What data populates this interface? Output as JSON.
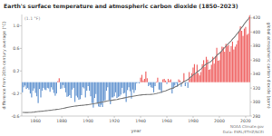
{
  "chart_data": {
    "type": "bar",
    "title": "Earth's surface temperature and atmospheric carbon dioxide (1850–2023)",
    "x_label": "year",
    "y_label": "difference from 20th century average (°C)",
    "y2_label": "global atmospheric carbon dioxide (ppm)",
    "annotation": "(1.1 °F)",
    "credit": "NOAA Climate.gov",
    "source": "Data: ESRL/ETHZ/NCEI",
    "grid": false,
    "x": [
      1850,
      1851,
      1852,
      1853,
      1854,
      1855,
      1856,
      1857,
      1858,
      1859,
      1860,
      1861,
      1862,
      1863,
      1864,
      1865,
      1866,
      1867,
      1868,
      1869,
      1870,
      1871,
      1872,
      1873,
      1874,
      1875,
      1876,
      1877,
      1878,
      1879,
      1880,
      1881,
      1882,
      1883,
      1884,
      1885,
      1886,
      1887,
      1888,
      1889,
      1890,
      1891,
      1892,
      1893,
      1894,
      1895,
      1896,
      1897,
      1898,
      1899,
      1900,
      1901,
      1902,
      1903,
      1904,
      1905,
      1906,
      1907,
      1908,
      1909,
      1910,
      1911,
      1912,
      1913,
      1914,
      1915,
      1916,
      1917,
      1918,
      1919,
      1920,
      1921,
      1922,
      1923,
      1924,
      1925,
      1926,
      1927,
      1928,
      1929,
      1930,
      1931,
      1932,
      1933,
      1934,
      1935,
      1936,
      1937,
      1938,
      1939,
      1940,
      1941,
      1942,
      1943,
      1944,
      1945,
      1946,
      1947,
      1948,
      1949,
      1950,
      1951,
      1952,
      1953,
      1954,
      1955,
      1956,
      1957,
      1958,
      1959,
      1960,
      1961,
      1962,
      1963,
      1964,
      1965,
      1966,
      1967,
      1968,
      1969,
      1970,
      1971,
      1972,
      1973,
      1974,
      1975,
      1976,
      1977,
      1978,
      1979,
      1980,
      1981,
      1982,
      1983,
      1984,
      1985,
      1986,
      1987,
      1988,
      1989,
      1990,
      1991,
      1992,
      1993,
      1994,
      1995,
      1996,
      1997,
      1998,
      1999,
      2000,
      2001,
      2002,
      2003,
      2004,
      2005,
      2006,
      2007,
      2008,
      2009,
      2010,
      2011,
      2012,
      2013,
      2014,
      2015,
      2016,
      2017,
      2018,
      2019,
      2020,
      2021,
      2022,
      2023
    ],
    "xlim": [
      1849.5,
      2023.5
    ],
    "xticks": [
      1860,
      1880,
      1900,
      1920,
      1940,
      1960,
      1980,
      2000,
      2020
    ],
    "ylim": [
      -0.6,
      1.2
    ],
    "yticks": [
      -0.6,
      -0.2,
      0.2,
      0.6,
      {
        "value": 1,
        "label": "1.0"
      }
    ],
    "y2lim": [
      280,
      425
    ],
    "y2ticks": [
      280,
      300,
      320,
      340,
      360,
      380,
      400,
      420
    ],
    "series": [
      {
        "type": "bar",
        "colors": [
          "#6a99d2",
          "#6a99d2",
          "#6a99d2",
          "#6a99d2",
          "#6a99d2",
          "#6a99d2",
          "#6a99d2",
          "#6a99d2",
          "#6a99d2",
          "#6a99d2",
          "#6a99d2",
          "#6a99d2",
          "#6a99d2",
          "#6a99d2",
          "#6a99d2",
          "#6a99d2",
          "#6a99d2",
          "#6a99d2",
          "#6a99d2",
          "#6a99d2",
          "#6a99d2",
          "#6a99d2",
          "#6a99d2",
          "#6a99d2",
          "#6a99d2",
          "#6a99d2",
          "#6a99d2",
          "#f06b6b",
          "#f06b6b",
          "#6a99d2",
          "#6a99d2",
          "#6a99d2",
          "#6a99d2",
          "#6a99d2",
          "#6a99d2",
          "#6a99d2",
          "#6a99d2",
          "#6a99d2",
          "#6a99d2",
          "#6a99d2",
          "#6a99d2",
          "#6a99d2",
          "#6a99d2",
          "#6a99d2",
          "#6a99d2",
          "#6a99d2",
          "#6a99d2",
          "#6a99d2",
          "#6a99d2",
          "#6a99d2",
          "#6a99d2",
          "#6a99d2",
          "#6a99d2",
          "#6a99d2",
          "#6a99d2",
          "#6a99d2",
          "#6a99d2",
          "#6a99d2",
          "#6a99d2",
          "#6a99d2",
          "#6a99d2",
          "#6a99d2",
          "#6a99d2",
          "#6a99d2",
          "#6a99d2",
          "#6a99d2",
          "#6a99d2",
          "#6a99d2",
          "#6a99d2",
          "#6a99d2",
          "#6a99d2",
          "#6a99d2",
          "#6a99d2",
          "#6a99d2",
          "#6a99d2",
          "#6a99d2",
          "#6a99d2",
          "#6a99d2",
          "#6a99d2",
          "#6a99d2",
          "#6a99d2",
          "#6a99d2",
          "#6a99d2",
          "#6a99d2",
          "#6a99d2",
          "#6a99d2",
          "#6a99d2",
          "#6a99d2",
          "#6a99d2",
          "#6a99d2",
          "#f06b6b",
          "#f06b6b",
          "#f06b6b",
          "#f06b6b",
          "#f06b6b",
          "#f06b6b",
          "#6a99d2",
          "#6a99d2",
          "#6a99d2",
          "#6a99d2",
          "#6a99d2",
          "#6a99d2",
          "#f06b6b",
          "#f06b6b",
          "#6a99d2",
          "#6a99d2",
          "#6a99d2",
          "#f06b6b",
          "#f06b6b",
          "#f06b6b",
          "#6a99d2",
          "#f06b6b",
          "#f06b6b",
          "#f06b6b",
          "#6a99d2",
          "#6a99d2",
          "#6a99d2",
          "#6a99d2",
          "#6a99d2",
          "#f06b6b",
          "#f06b6b",
          "#6a99d2",
          "#f06b6b",
          "#f06b6b",
          "#6a99d2",
          "#6a99d2",
          "#6a99d2",
          "#f06b6b",
          "#f06b6b",
          "#f06b6b",
          "#f06b6b",
          "#f06b6b",
          "#f06b6b",
          "#f06b6b",
          "#f06b6b",
          "#f06b6b",
          "#f06b6b",
          "#f06b6b",
          "#f06b6b",
          "#f06b6b",
          "#f06b6b",
          "#f06b6b",
          "#f06b6b",
          "#f06b6b",
          "#f06b6b",
          "#f06b6b",
          "#f06b6b",
          "#f06b6b",
          "#f06b6b",
          "#f06b6b",
          "#f06b6b",
          "#f06b6b",
          "#f06b6b",
          "#f06b6b",
          "#f06b6b",
          "#f06b6b",
          "#f06b6b",
          "#f06b6b",
          "#f06b6b",
          "#f06b6b",
          "#f06b6b",
          "#f06b6b",
          "#f06b6b",
          "#f06b6b",
          "#f06b6b",
          "#f06b6b",
          "#f06b6b",
          "#f06b6b",
          "#f06b6b",
          "#f06b6b",
          "#f06b6b",
          "#f06b6b",
          "#f06b6b",
          "#f06b6b"
        ],
        "values": [
          -0.18,
          -0.09,
          -0.06,
          -0.12,
          -0.1,
          -0.13,
          -0.2,
          -0.27,
          -0.15,
          -0.11,
          -0.19,
          -0.25,
          -0.37,
          -0.12,
          -0.27,
          -0.15,
          -0.1,
          -0.13,
          -0.14,
          -0.1,
          -0.11,
          -0.17,
          -0.09,
          -0.13,
          -0.19,
          -0.24,
          -0.2,
          0.02,
          0.07,
          -0.12,
          -0.11,
          -0.05,
          -0.1,
          -0.18,
          -0.26,
          -0.25,
          -0.23,
          -0.28,
          -0.13,
          -0.1,
          -0.35,
          -0.24,
          -0.27,
          -0.31,
          -0.3,
          -0.23,
          -0.09,
          -0.11,
          -0.27,
          -0.15,
          -0.07,
          -0.15,
          -0.25,
          -0.37,
          -0.45,
          -0.28,
          -0.21,
          -0.38,
          -0.43,
          -0.44,
          -0.4,
          -0.44,
          -0.33,
          -0.32,
          -0.15,
          -0.09,
          -0.32,
          -0.39,
          -0.27,
          -0.27,
          -0.25,
          -0.18,
          -0.28,
          -0.26,
          -0.25,
          -0.22,
          -0.1,
          -0.2,
          -0.19,
          -0.35,
          -0.14,
          -0.09,
          -0.16,
          -0.29,
          -0.13,
          -0.19,
          -0.14,
          -0.02,
          -0.01,
          -0.02,
          0.08,
          0.13,
          0.03,
          0.06,
          0.19,
          0.07,
          -0.07,
          -0.05,
          -0.09,
          -0.1,
          -0.18,
          -0.07,
          0.01,
          0.08,
          -0.13,
          -0.14,
          -0.19,
          0.05,
          0.06,
          0.03,
          -0.03,
          0.06,
          0.03,
          0.05,
          -0.2,
          -0.11,
          -0.06,
          -0.02,
          -0.08,
          0.05,
          0.03,
          -0.08,
          0.01,
          0.16,
          -0.07,
          -0.01,
          -0.1,
          0.18,
          0.07,
          0.16,
          0.26,
          0.32,
          0.14,
          0.31,
          0.16,
          0.12,
          0.18,
          0.32,
          0.39,
          0.27,
          0.45,
          0.4,
          0.22,
          0.23,
          0.31,
          0.45,
          0.33,
          0.46,
          0.61,
          0.38,
          0.39,
          0.54,
          0.63,
          0.62,
          0.54,
          0.68,
          0.64,
          0.66,
          0.54,
          0.64,
          0.72,
          0.58,
          0.63,
          0.67,
          0.74,
          0.9,
          0.99,
          0.91,
          0.82,
          0.95,
          0.98,
          0.84,
          0.86,
          1.18
        ]
      },
      {
        "type": "line",
        "axis": "y2",
        "color": "#7a7a7a",
        "values": [
          285.2,
          285.1,
          285.0,
          285.0,
          285.0,
          285.1,
          285.2,
          285.3,
          285.5,
          285.7,
          286.0,
          286.2,
          286.4,
          286.6,
          286.8,
          287.0,
          287.2,
          287.4,
          287.6,
          287.8,
          288.0,
          288.2,
          288.4,
          288.7,
          289.0,
          289.2,
          289.5,
          289.8,
          290.0,
          290.3,
          290.7,
          291.0,
          291.4,
          291.8,
          292.2,
          292.6,
          293.0,
          293.3,
          293.6,
          293.9,
          294.2,
          294.4,
          294.6,
          294.8,
          295.0,
          295.2,
          295.4,
          295.6,
          295.8,
          296.0,
          296.2,
          296.5,
          296.8,
          297.1,
          297.4,
          297.7,
          298.1,
          298.5,
          298.9,
          299.3,
          299.7,
          300.1,
          300.5,
          300.9,
          301.3,
          301.6,
          301.9,
          302.2,
          302.5,
          302.8,
          303.1,
          303.4,
          303.7,
          304.1,
          304.5,
          304.9,
          305.3,
          305.7,
          306.1,
          306.5,
          306.9,
          307.3,
          307.6,
          307.9,
          308.2,
          308.5,
          308.8,
          309.1,
          309.4,
          309.7,
          310.0,
          310.2,
          310.4,
          310.5,
          310.6,
          310.7,
          310.7,
          310.8,
          310.9,
          311.0,
          311.3,
          311.7,
          312.1,
          312.6,
          313.1,
          313.7,
          314.3,
          315.0,
          315.7,
          316.0,
          316.9,
          317.6,
          318.5,
          319.0,
          319.6,
          320.0,
          321.4,
          322.2,
          323.0,
          324.6,
          325.7,
          326.3,
          327.5,
          329.7,
          330.2,
          331.1,
          332.0,
          333.8,
          335.4,
          336.8,
          338.7,
          339.9,
          341.1,
          342.8,
          344.4,
          345.9,
          347.2,
          349.0,
          351.4,
          352.9,
          354.2,
          355.5,
          356.3,
          357.1,
          358.8,
          360.8,
          362.6,
          363.7,
          366.7,
          368.4,
          369.7,
          371.3,
          373.4,
          375.9,
          377.7,
          379.8,
          381.9,
          383.8,
          385.6,
          387.4,
          389.9,
          391.7,
          393.9,
          396.5,
          398.6,
          400.8,
          404.2,
          406.5,
          408.7,
          411.7,
          414.2,
          416.4,
          418.5,
          421.1
        ]
      }
    ]
  }
}
